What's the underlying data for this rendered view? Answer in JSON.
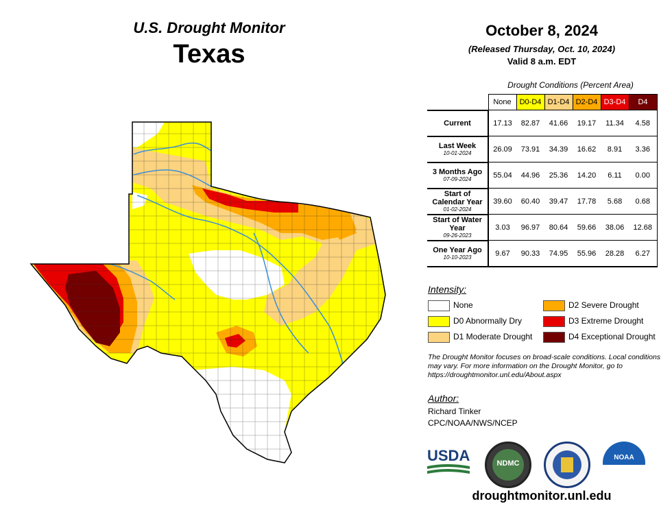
{
  "header": {
    "title": "U.S. Drought Monitor",
    "state": "Texas",
    "date": "October 8, 2024",
    "released": "(Released Thursday, Oct. 10, 2024)",
    "valid": "Valid 8 a.m. EDT"
  },
  "table": {
    "caption": "Drought Conditions (Percent Area)",
    "columns": [
      "None",
      "D0-D4",
      "D1-D4",
      "D2-D4",
      "D3-D4",
      "D4"
    ],
    "column_colors": [
      "#ffffff",
      "#ffff00",
      "#fcd37f",
      "#ffaa00",
      "#e60000",
      "#730000"
    ],
    "rows": [
      {
        "label": "Current",
        "date": "",
        "values": [
          "17.13",
          "82.87",
          "41.66",
          "19.17",
          "11.34",
          "4.58"
        ]
      },
      {
        "label": "Last Week",
        "date": "10-01-2024",
        "values": [
          "26.09",
          "73.91",
          "34.39",
          "16.62",
          "8.91",
          "3.36"
        ]
      },
      {
        "label": "3 Months Ago",
        "date": "07-09-2024",
        "values": [
          "55.04",
          "44.96",
          "25.36",
          "14.20",
          "6.11",
          "0.00"
        ]
      },
      {
        "label": "Start of Calendar Year",
        "date": "01-02-2024",
        "values": [
          "39.60",
          "60.40",
          "39.47",
          "17.78",
          "5.68",
          "0.68"
        ]
      },
      {
        "label": "Start of Water Year",
        "date": "09-26-2023",
        "values": [
          "3.03",
          "96.97",
          "80.64",
          "59.66",
          "38.06",
          "12.68"
        ]
      },
      {
        "label": "One Year Ago",
        "date": "10-10-2023",
        "values": [
          "9.67",
          "90.33",
          "74.95",
          "55.96",
          "28.28",
          "6.27"
        ]
      }
    ]
  },
  "legend": {
    "heading": "Intensity:",
    "items": [
      {
        "label": "None",
        "color": "#ffffff"
      },
      {
        "label": "D0 Abnormally Dry",
        "color": "#ffff00"
      },
      {
        "label": "D1 Moderate Drought",
        "color": "#fcd37f"
      },
      {
        "label": "D2 Severe Drought",
        "color": "#ffaa00"
      },
      {
        "label": "D3 Extreme Drought",
        "color": "#e60000"
      },
      {
        "label": "D4 Exceptional Drought",
        "color": "#730000"
      }
    ]
  },
  "note": "The Drought Monitor focuses on broad-scale conditions. Local conditions may vary. For more information on the Drought Monitor, go to https://droughtmonitor.unl.edu/About.aspx",
  "author": {
    "heading": "Author:",
    "name": "Richard Tinker",
    "org": "CPC/NOAA/NWS/NCEP"
  },
  "logos": {
    "usda": "USDA",
    "ndmc": "NDMC",
    "noaa": "NOAA"
  },
  "url": "droughtmonitor.unl.edu"
}
